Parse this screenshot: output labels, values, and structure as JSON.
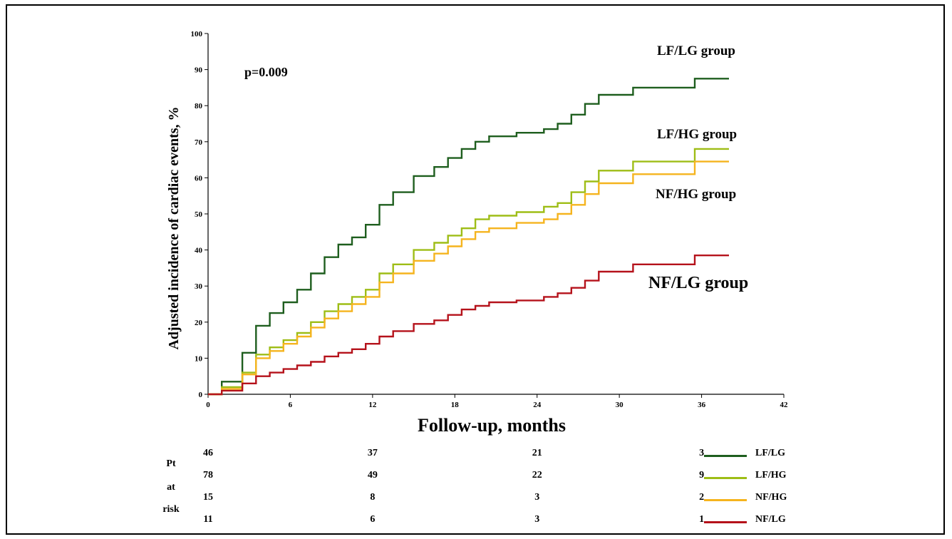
{
  "chart_data": {
    "type": "line",
    "step": true,
    "xlabel": "Follow-up, months",
    "ylabel": "Adjusted incidence of cardiac events, %",
    "xlim": [
      0,
      42
    ],
    "ylim": [
      0,
      100
    ],
    "xticks": [
      0,
      6,
      12,
      18,
      24,
      30,
      36,
      42
    ],
    "yticks": [
      0,
      10,
      20,
      30,
      40,
      50,
      60,
      70,
      80,
      90,
      100
    ],
    "grid": false,
    "annotation": "p=0.009",
    "series": [
      {
        "name": "LF/LG group",
        "legend": "LF/LG",
        "color": "#1e5e1e",
        "points": [
          [
            0,
            0
          ],
          [
            1,
            0
          ],
          [
            1,
            3.5
          ],
          [
            2.5,
            3.5
          ],
          [
            2.5,
            11.5
          ],
          [
            3.5,
            11.5
          ],
          [
            3.5,
            19
          ],
          [
            4.5,
            19
          ],
          [
            4.5,
            22.5
          ],
          [
            5.5,
            22.5
          ],
          [
            5.5,
            25.5
          ],
          [
            6.5,
            25.5
          ],
          [
            6.5,
            29
          ],
          [
            7.5,
            29
          ],
          [
            7.5,
            33.5
          ],
          [
            8.5,
            33.5
          ],
          [
            8.5,
            38
          ],
          [
            9.5,
            38
          ],
          [
            9.5,
            41.5
          ],
          [
            10.5,
            41.5
          ],
          [
            10.5,
            43.5
          ],
          [
            11.5,
            43.5
          ],
          [
            11.5,
            47
          ],
          [
            12.5,
            47
          ],
          [
            12.5,
            52.5
          ],
          [
            13.5,
            52.5
          ],
          [
            13.5,
            56
          ],
          [
            15,
            56
          ],
          [
            15,
            60.5
          ],
          [
            16.5,
            60.5
          ],
          [
            16.5,
            63
          ],
          [
            17.5,
            63
          ],
          [
            17.5,
            65.5
          ],
          [
            18.5,
            65.5
          ],
          [
            18.5,
            68
          ],
          [
            19.5,
            68
          ],
          [
            19.5,
            70
          ],
          [
            20.5,
            70
          ],
          [
            20.5,
            71.5
          ],
          [
            22.5,
            71.5
          ],
          [
            22.5,
            72.5
          ],
          [
            24.5,
            72.5
          ],
          [
            24.5,
            73.5
          ],
          [
            25.5,
            73.5
          ],
          [
            25.5,
            75
          ],
          [
            26.5,
            75
          ],
          [
            26.5,
            77.5
          ],
          [
            27.5,
            77.5
          ],
          [
            27.5,
            80.5
          ],
          [
            28.5,
            80.5
          ],
          [
            28.5,
            83
          ],
          [
            31,
            83
          ],
          [
            31,
            85
          ],
          [
            35.5,
            85
          ],
          [
            35.5,
            87.5
          ],
          [
            38,
            87.5
          ]
        ]
      },
      {
        "name": "LF/HG group",
        "legend": "LF/HG",
        "color": "#9ebd16",
        "points": [
          [
            0,
            0
          ],
          [
            1,
            0
          ],
          [
            1,
            2
          ],
          [
            2.5,
            2
          ],
          [
            2.5,
            6
          ],
          [
            3.5,
            6
          ],
          [
            3.5,
            11
          ],
          [
            4.5,
            11
          ],
          [
            4.5,
            13
          ],
          [
            5.5,
            13
          ],
          [
            5.5,
            15
          ],
          [
            6.5,
            15
          ],
          [
            6.5,
            17
          ],
          [
            7.5,
            17
          ],
          [
            7.5,
            20
          ],
          [
            8.5,
            20
          ],
          [
            8.5,
            23
          ],
          [
            9.5,
            23
          ],
          [
            9.5,
            25
          ],
          [
            10.5,
            25
          ],
          [
            10.5,
            27
          ],
          [
            11.5,
            27
          ],
          [
            11.5,
            29
          ],
          [
            12.5,
            29
          ],
          [
            12.5,
            33.5
          ],
          [
            13.5,
            33.5
          ],
          [
            13.5,
            36
          ],
          [
            15,
            36
          ],
          [
            15,
            40
          ],
          [
            16.5,
            40
          ],
          [
            16.5,
            42
          ],
          [
            17.5,
            42
          ],
          [
            17.5,
            44
          ],
          [
            18.5,
            44
          ],
          [
            18.5,
            46
          ],
          [
            19.5,
            46
          ],
          [
            19.5,
            48.5
          ],
          [
            20.5,
            48.5
          ],
          [
            20.5,
            49.5
          ],
          [
            22.5,
            49.5
          ],
          [
            22.5,
            50.5
          ],
          [
            24.5,
            50.5
          ],
          [
            24.5,
            52
          ],
          [
            25.5,
            52
          ],
          [
            25.5,
            53
          ],
          [
            26.5,
            53
          ],
          [
            26.5,
            56
          ],
          [
            27.5,
            56
          ],
          [
            27.5,
            59
          ],
          [
            28.5,
            59
          ],
          [
            28.5,
            62
          ],
          [
            31,
            62
          ],
          [
            31,
            64.5
          ],
          [
            35.5,
            64.5
          ],
          [
            35.5,
            68
          ],
          [
            38,
            68
          ]
        ]
      },
      {
        "name": "NF/HG group",
        "legend": "NF/HG",
        "color": "#f5b41e",
        "points": [
          [
            0,
            0
          ],
          [
            1,
            0
          ],
          [
            1,
            1.5
          ],
          [
            2.5,
            1.5
          ],
          [
            2.5,
            5.5
          ],
          [
            3.5,
            5.5
          ],
          [
            3.5,
            10
          ],
          [
            4.5,
            10
          ],
          [
            4.5,
            12
          ],
          [
            5.5,
            12
          ],
          [
            5.5,
            14
          ],
          [
            6.5,
            14
          ],
          [
            6.5,
            16
          ],
          [
            7.5,
            16
          ],
          [
            7.5,
            18.5
          ],
          [
            8.5,
            18.5
          ],
          [
            8.5,
            21
          ],
          [
            9.5,
            21
          ],
          [
            9.5,
            23
          ],
          [
            10.5,
            23
          ],
          [
            10.5,
            25
          ],
          [
            11.5,
            25
          ],
          [
            11.5,
            27
          ],
          [
            12.5,
            27
          ],
          [
            12.5,
            31
          ],
          [
            13.5,
            31
          ],
          [
            13.5,
            33.5
          ],
          [
            15,
            33.5
          ],
          [
            15,
            37
          ],
          [
            16.5,
            37
          ],
          [
            16.5,
            39
          ],
          [
            17.5,
            39
          ],
          [
            17.5,
            41
          ],
          [
            18.5,
            41
          ],
          [
            18.5,
            43
          ],
          [
            19.5,
            43
          ],
          [
            19.5,
            45
          ],
          [
            20.5,
            45
          ],
          [
            20.5,
            46
          ],
          [
            22.5,
            46
          ],
          [
            22.5,
            47.5
          ],
          [
            24.5,
            47.5
          ],
          [
            24.5,
            48.5
          ],
          [
            25.5,
            48.5
          ],
          [
            25.5,
            50
          ],
          [
            26.5,
            50
          ],
          [
            26.5,
            52.5
          ],
          [
            27.5,
            52.5
          ],
          [
            27.5,
            55.5
          ],
          [
            28.5,
            55.5
          ],
          [
            28.5,
            58.5
          ],
          [
            31,
            58.5
          ],
          [
            31,
            61
          ],
          [
            35.5,
            61
          ],
          [
            35.5,
            64.5
          ],
          [
            38,
            64.5
          ]
        ]
      },
      {
        "name": "NF/LG group",
        "legend": "NF/LG",
        "color": "#b5121b",
        "points": [
          [
            0,
            0
          ],
          [
            1,
            0
          ],
          [
            1,
            1
          ],
          [
            2.5,
            1
          ],
          [
            2.5,
            3
          ],
          [
            3.5,
            3
          ],
          [
            3.5,
            5
          ],
          [
            4.5,
            5
          ],
          [
            4.5,
            6
          ],
          [
            5.5,
            6
          ],
          [
            5.5,
            7
          ],
          [
            6.5,
            7
          ],
          [
            6.5,
            8
          ],
          [
            7.5,
            8
          ],
          [
            7.5,
            9
          ],
          [
            8.5,
            9
          ],
          [
            8.5,
            10.5
          ],
          [
            9.5,
            10.5
          ],
          [
            9.5,
            11.5
          ],
          [
            10.5,
            11.5
          ],
          [
            10.5,
            12.5
          ],
          [
            11.5,
            12.5
          ],
          [
            11.5,
            14
          ],
          [
            12.5,
            14
          ],
          [
            12.5,
            16
          ],
          [
            13.5,
            16
          ],
          [
            13.5,
            17.5
          ],
          [
            15,
            17.5
          ],
          [
            15,
            19.5
          ],
          [
            16.5,
            19.5
          ],
          [
            16.5,
            20.5
          ],
          [
            17.5,
            20.5
          ],
          [
            17.5,
            22
          ],
          [
            18.5,
            22
          ],
          [
            18.5,
            23.5
          ],
          [
            19.5,
            23.5
          ],
          [
            19.5,
            24.5
          ],
          [
            20.5,
            24.5
          ],
          [
            20.5,
            25.5
          ],
          [
            22.5,
            25.5
          ],
          [
            22.5,
            26
          ],
          [
            24.5,
            26
          ],
          [
            24.5,
            27
          ],
          [
            25.5,
            27
          ],
          [
            25.5,
            28
          ],
          [
            26.5,
            28
          ],
          [
            26.5,
            29.5
          ],
          [
            27.5,
            29.5
          ],
          [
            27.5,
            31.5
          ],
          [
            28.5,
            31.5
          ],
          [
            28.5,
            34
          ],
          [
            31,
            34
          ],
          [
            31,
            36
          ],
          [
            35.5,
            36
          ],
          [
            35.5,
            38.5
          ],
          [
            38,
            38.5
          ]
        ]
      }
    ]
  },
  "risk_table": {
    "label_lines": [
      "Pt",
      "at",
      "risk"
    ],
    "timepoints": [
      0,
      12,
      24,
      36
    ],
    "rows": [
      {
        "series": "LF/LG",
        "values": [
          "46",
          "37",
          "21",
          "3"
        ]
      },
      {
        "series": "LF/HG",
        "values": [
          "78",
          "49",
          "22",
          "9"
        ]
      },
      {
        "series": "NF/HG",
        "values": [
          "15",
          "8",
          "3",
          "2"
        ]
      },
      {
        "series": "NF/LG",
        "values": [
          "11",
          "6",
          "3",
          "1"
        ]
      }
    ]
  }
}
